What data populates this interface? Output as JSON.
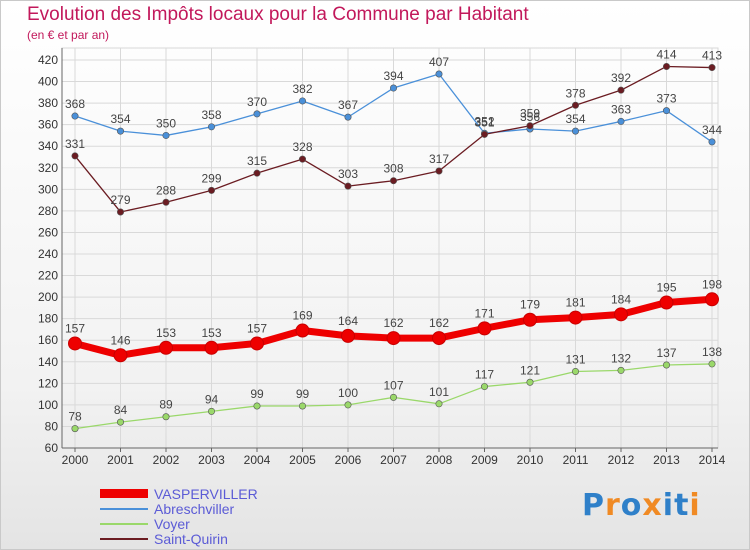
{
  "chart_data": {
    "type": "line",
    "title": "Evolution des Impôts locaux pour la Commune par Habitant",
    "subtitle": "(en € et par an)",
    "categories": [
      "2000",
      "2001",
      "2002",
      "2003",
      "2004",
      "2005",
      "2006",
      "2007",
      "2008",
      "2009",
      "2010",
      "2011",
      "2012",
      "2013",
      "2014"
    ],
    "y_ticks": [
      60,
      80,
      100,
      120,
      140,
      160,
      180,
      200,
      220,
      240,
      260,
      280,
      300,
      320,
      340,
      360,
      380,
      400,
      420
    ],
    "ylim": [
      60,
      420
    ],
    "grid": true,
    "legend_position": "bottom-left",
    "series": [
      {
        "name": "VASPERVILLER",
        "color": "#ee0000",
        "values": [
          157,
          146,
          153,
          153,
          157,
          169,
          164,
          162,
          162,
          171,
          179,
          181,
          184,
          195,
          198
        ]
      },
      {
        "name": "Abreschviller",
        "color": "#4a90d9",
        "values": [
          368,
          354,
          350,
          358,
          370,
          382,
          367,
          394,
          407,
          352,
          356,
          354,
          363,
          373,
          344
        ]
      },
      {
        "name": "Voyer",
        "color": "#9ad86a",
        "values": [
          78,
          84,
          89,
          94,
          99,
          99,
          100,
          107,
          101,
          117,
          121,
          131,
          132,
          137,
          138
        ]
      },
      {
        "name": "Saint-Quirin",
        "color": "#6b1c22",
        "values": [
          331,
          279,
          288,
          299,
          315,
          328,
          303,
          308,
          317,
          351,
          359,
          378,
          392,
          414,
          413
        ]
      }
    ]
  },
  "logo": {
    "text": "Proxiti",
    "letters": [
      "P",
      "r",
      "o",
      "x",
      "i",
      "t",
      "i"
    ],
    "colors": [
      "#2f80c9",
      "#f08a24",
      "#2f80c9",
      "#f08a24",
      "#2f80c9",
      "#2f80c9",
      "#f08a24"
    ]
  }
}
